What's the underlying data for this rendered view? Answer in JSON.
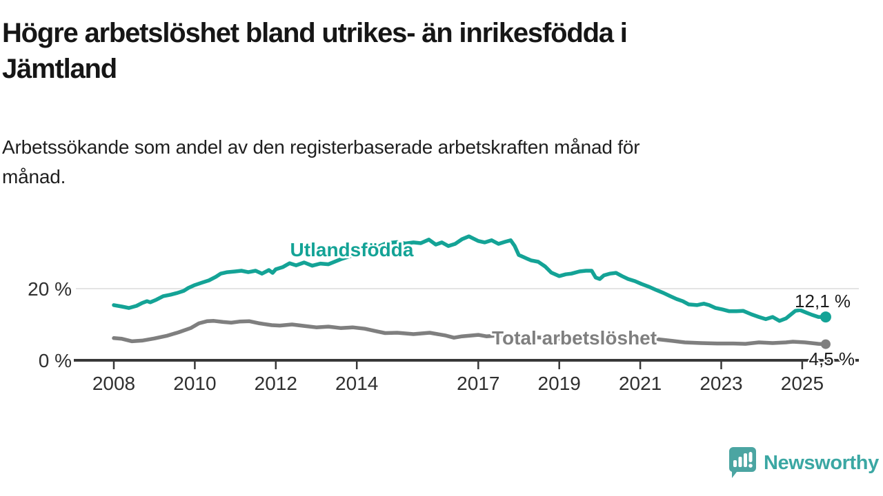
{
  "title": "Högre arbetslöshet bland utrikes- än inrikesfödda i Jämtland",
  "title_lines": [
    "Högre arbetslöshet bland utrikes- än inrikesfödda i",
    "Jämtland"
  ],
  "subtitle": "Arbetssökande som andel av den registerbaserade arbetskraften månad för månad.",
  "subtitle_lines": [
    "Arbetssökande som andel av den registerbaserade arbetskraften månad för",
    "månad."
  ],
  "branding": {
    "logo_text": "Newsworthy",
    "logo_icon": "bar-chart-speech-bubble-icon",
    "brand_color": "#3BA7A3",
    "logo_bubble_color": "#4BA5A2"
  },
  "colors": {
    "foreign_born_line": "#14A396",
    "total_line": "#7F7F7F",
    "axis": "#383838",
    "gridline": "#DCDCDC",
    "text": "#161616"
  },
  "chart_data": {
    "type": "line",
    "title": "Högre arbetslöshet bland utrikes- än inrikesfödda i Jämtland",
    "subtitle": "Arbetssökande som andel av den registerbaserade arbetskraften månad för månad.",
    "unit": "percent of register-based labour force",
    "x_axis": {
      "label": "",
      "tick_years": [
        2008,
        2010,
        2012,
        2014,
        2017,
        2019,
        2021,
        2023,
        2025
      ],
      "range": [
        2007.6,
        2026.1
      ]
    },
    "y_axis": {
      "label": "",
      "ticks": [
        {
          "value": 0,
          "label": "0 %"
        },
        {
          "value": 20,
          "label": "20 %"
        }
      ],
      "range": [
        0,
        36.5
      ],
      "gridlines": [
        20
      ]
    },
    "legend_position": "inline-labels",
    "series": [
      {
        "name": "Utlandsfödda",
        "color": "#14A396",
        "end_value": 12.1,
        "end_label": "12,1 %",
        "points": [
          [
            2008.0,
            15.4
          ],
          [
            2008.2,
            15.0
          ],
          [
            2008.37,
            14.6
          ],
          [
            2008.56,
            15.2
          ],
          [
            2008.7,
            16.0
          ],
          [
            2008.82,
            16.5
          ],
          [
            2008.9,
            16.2
          ],
          [
            2009.05,
            16.9
          ],
          [
            2009.22,
            17.9
          ],
          [
            2009.4,
            18.3
          ],
          [
            2009.57,
            18.8
          ],
          [
            2009.73,
            19.4
          ],
          [
            2009.84,
            20.2
          ],
          [
            2010.0,
            21.0
          ],
          [
            2010.18,
            21.7
          ],
          [
            2010.35,
            22.3
          ],
          [
            2010.52,
            23.3
          ],
          [
            2010.64,
            24.2
          ],
          [
            2010.8,
            24.6
          ],
          [
            2011.0,
            24.8
          ],
          [
            2011.15,
            25.0
          ],
          [
            2011.32,
            24.6
          ],
          [
            2011.5,
            25.0
          ],
          [
            2011.66,
            24.2
          ],
          [
            2011.83,
            25.2
          ],
          [
            2011.92,
            24.4
          ],
          [
            2012.0,
            25.4
          ],
          [
            2012.17,
            26.0
          ],
          [
            2012.34,
            27.1
          ],
          [
            2012.5,
            26.5
          ],
          [
            2012.7,
            27.3
          ],
          [
            2012.9,
            26.4
          ],
          [
            2013.1,
            27.0
          ],
          [
            2013.3,
            26.8
          ],
          [
            2013.6,
            28.2
          ],
          [
            2013.9,
            29.3
          ],
          [
            2014.2,
            30.4
          ],
          [
            2014.5,
            31.6
          ],
          [
            2014.73,
            32.7
          ],
          [
            2015.0,
            33.0
          ],
          [
            2015.2,
            32.6
          ],
          [
            2015.4,
            32.9
          ],
          [
            2015.58,
            32.7
          ],
          [
            2015.78,
            33.7
          ],
          [
            2015.95,
            32.3
          ],
          [
            2016.1,
            32.9
          ],
          [
            2016.26,
            31.9
          ],
          [
            2016.43,
            32.5
          ],
          [
            2016.6,
            33.8
          ],
          [
            2016.77,
            34.6
          ],
          [
            2017.0,
            33.3
          ],
          [
            2017.16,
            32.9
          ],
          [
            2017.33,
            33.5
          ],
          [
            2017.5,
            32.5
          ],
          [
            2017.67,
            33.1
          ],
          [
            2017.8,
            33.5
          ],
          [
            2017.9,
            31.9
          ],
          [
            2018.0,
            29.4
          ],
          [
            2018.14,
            28.7
          ],
          [
            2018.3,
            27.9
          ],
          [
            2018.48,
            27.5
          ],
          [
            2018.65,
            26.2
          ],
          [
            2018.8,
            24.5
          ],
          [
            2019.0,
            23.5
          ],
          [
            2019.16,
            24.0
          ],
          [
            2019.3,
            24.2
          ],
          [
            2019.5,
            24.8
          ],
          [
            2019.66,
            25.0
          ],
          [
            2019.8,
            25.0
          ],
          [
            2019.9,
            23.1
          ],
          [
            2020.0,
            22.7
          ],
          [
            2020.1,
            23.7
          ],
          [
            2020.25,
            24.2
          ],
          [
            2020.4,
            24.4
          ],
          [
            2020.55,
            23.5
          ],
          [
            2020.7,
            22.7
          ],
          [
            2020.87,
            22.1
          ],
          [
            2021.03,
            21.3
          ],
          [
            2021.2,
            20.6
          ],
          [
            2021.4,
            19.6
          ],
          [
            2021.57,
            18.8
          ],
          [
            2021.74,
            17.9
          ],
          [
            2021.9,
            17.1
          ],
          [
            2022.05,
            16.5
          ],
          [
            2022.2,
            15.6
          ],
          [
            2022.4,
            15.4
          ],
          [
            2022.57,
            15.8
          ],
          [
            2022.7,
            15.4
          ],
          [
            2022.86,
            14.6
          ],
          [
            2023.03,
            14.2
          ],
          [
            2023.2,
            13.7
          ],
          [
            2023.37,
            13.7
          ],
          [
            2023.54,
            13.8
          ],
          [
            2023.75,
            12.8
          ],
          [
            2023.93,
            12.1
          ],
          [
            2024.1,
            11.5
          ],
          [
            2024.27,
            12.1
          ],
          [
            2024.44,
            11.0
          ],
          [
            2024.6,
            11.7
          ],
          [
            2024.83,
            13.8
          ],
          [
            2024.95,
            14.0
          ],
          [
            2025.1,
            13.3
          ],
          [
            2025.24,
            12.7
          ],
          [
            2025.4,
            12.1
          ],
          [
            2025.58,
            12.1
          ]
        ]
      },
      {
        "name": "Total arbetslöshet",
        "color": "#7F7F7F",
        "end_value": 4.5,
        "end_label": "4,5 %",
        "points": [
          [
            2008.0,
            6.2
          ],
          [
            2008.2,
            6.0
          ],
          [
            2008.45,
            5.3
          ],
          [
            2008.7,
            5.5
          ],
          [
            2009.0,
            6.1
          ],
          [
            2009.3,
            6.8
          ],
          [
            2009.6,
            7.8
          ],
          [
            2009.9,
            9.0
          ],
          [
            2010.1,
            10.3
          ],
          [
            2010.3,
            10.9
          ],
          [
            2010.47,
            11.0
          ],
          [
            2010.7,
            10.7
          ],
          [
            2010.9,
            10.5
          ],
          [
            2011.1,
            10.8
          ],
          [
            2011.35,
            10.9
          ],
          [
            2011.6,
            10.3
          ],
          [
            2011.9,
            9.8
          ],
          [
            2012.1,
            9.7
          ],
          [
            2012.4,
            10.0
          ],
          [
            2012.7,
            9.6
          ],
          [
            2013.0,
            9.2
          ],
          [
            2013.3,
            9.4
          ],
          [
            2013.6,
            9.0
          ],
          [
            2013.9,
            9.2
          ],
          [
            2014.2,
            8.8
          ],
          [
            2014.45,
            8.2
          ],
          [
            2014.7,
            7.6
          ],
          [
            2015.0,
            7.7
          ],
          [
            2015.4,
            7.3
          ],
          [
            2015.8,
            7.7
          ],
          [
            2016.2,
            6.9
          ],
          [
            2016.4,
            6.3
          ],
          [
            2016.6,
            6.7
          ],
          [
            2017.0,
            7.1
          ],
          [
            2017.2,
            6.7
          ],
          [
            2017.45,
            6.9
          ],
          [
            2017.8,
            7.0
          ],
          [
            2018.2,
            6.6
          ],
          [
            2018.6,
            6.3
          ],
          [
            2019.0,
            6.0
          ],
          [
            2019.4,
            5.9
          ],
          [
            2019.8,
            6.1
          ],
          [
            2020.2,
            6.4
          ],
          [
            2020.6,
            6.6
          ],
          [
            2021.0,
            6.3
          ],
          [
            2021.4,
            5.9
          ],
          [
            2021.8,
            5.4
          ],
          [
            2022.1,
            5.0
          ],
          [
            2022.5,
            4.8
          ],
          [
            2022.9,
            4.7
          ],
          [
            2023.3,
            4.7
          ],
          [
            2023.6,
            4.6
          ],
          [
            2023.93,
            5.0
          ],
          [
            2024.27,
            4.8
          ],
          [
            2024.6,
            5.0
          ],
          [
            2024.77,
            5.2
          ],
          [
            2025.07,
            5.0
          ],
          [
            2025.4,
            4.6
          ],
          [
            2025.58,
            4.5
          ]
        ]
      }
    ]
  }
}
